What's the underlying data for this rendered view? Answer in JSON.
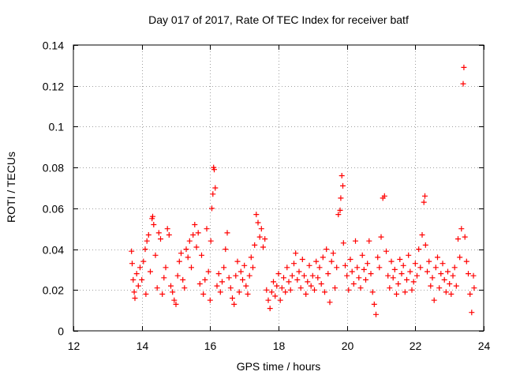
{
  "chart_data": {
    "type": "scatter",
    "title": "Day 017 of 2017, Rate Of TEC Index for receiver batf",
    "xlabel": "GPS time / hours",
    "ylabel": "ROTI / TECUs",
    "xlim": [
      12,
      24
    ],
    "ylim": [
      0,
      0.14
    ],
    "xticks": [
      12,
      14,
      16,
      18,
      20,
      22,
      24
    ],
    "xtick_labels": [
      "12",
      "14",
      "16",
      "18",
      "20",
      "22",
      "24"
    ],
    "yticks": [
      0,
      0.02,
      0.04,
      0.06,
      0.08,
      0.1,
      0.12,
      0.14
    ],
    "ytick_labels": [
      "0",
      "0.02",
      "0.04",
      "0.06",
      "0.08",
      "0.1",
      "0.12",
      "0.14"
    ],
    "grid": true,
    "marker": "+",
    "color": "#ff0000",
    "series": [
      {
        "name": "ROTI",
        "points": [
          [
            13.7,
            0.039
          ],
          [
            13.72,
            0.033
          ],
          [
            13.75,
            0.025
          ],
          [
            13.78,
            0.019
          ],
          [
            13.8,
            0.016
          ],
          [
            13.85,
            0.028
          ],
          [
            13.9,
            0.022
          ],
          [
            13.95,
            0.031
          ],
          [
            14.0,
            0.025
          ],
          [
            14.05,
            0.034
          ],
          [
            14.1,
            0.04
          ],
          [
            14.12,
            0.018
          ],
          [
            14.15,
            0.044
          ],
          [
            14.2,
            0.047
          ],
          [
            14.25,
            0.029
          ],
          [
            14.3,
            0.055
          ],
          [
            14.32,
            0.056
          ],
          [
            14.35,
            0.052
          ],
          [
            14.4,
            0.037
          ],
          [
            14.45,
            0.021
          ],
          [
            14.5,
            0.048
          ],
          [
            14.55,
            0.045
          ],
          [
            14.6,
            0.018
          ],
          [
            14.65,
            0.026
          ],
          [
            14.7,
            0.031
          ],
          [
            14.75,
            0.05
          ],
          [
            14.8,
            0.047
          ],
          [
            14.85,
            0.022
          ],
          [
            14.9,
            0.019
          ],
          [
            14.95,
            0.015
          ],
          [
            15.0,
            0.013
          ],
          [
            15.05,
            0.027
          ],
          [
            15.1,
            0.034
          ],
          [
            15.15,
            0.038
          ],
          [
            15.2,
            0.025
          ],
          [
            15.25,
            0.021
          ],
          [
            15.3,
            0.04
          ],
          [
            15.35,
            0.036
          ],
          [
            15.4,
            0.044
          ],
          [
            15.45,
            0.031
          ],
          [
            15.5,
            0.047
          ],
          [
            15.55,
            0.052
          ],
          [
            15.6,
            0.041
          ],
          [
            15.65,
            0.048
          ],
          [
            15.7,
            0.023
          ],
          [
            15.75,
            0.037
          ],
          [
            15.8,
            0.018
          ],
          [
            15.85,
            0.025
          ],
          [
            15.9,
            0.05
          ],
          [
            15.95,
            0.029
          ],
          [
            16.0,
            0.015
          ],
          [
            16.02,
            0.044
          ],
          [
            16.05,
            0.06
          ],
          [
            16.08,
            0.067
          ],
          [
            16.1,
            0.08
          ],
          [
            16.12,
            0.079
          ],
          [
            16.15,
            0.07
          ],
          [
            16.2,
            0.022
          ],
          [
            16.25,
            0.028
          ],
          [
            16.3,
            0.019
          ],
          [
            16.35,
            0.024
          ],
          [
            16.4,
            0.031
          ],
          [
            16.45,
            0.04
          ],
          [
            16.5,
            0.048
          ],
          [
            16.55,
            0.026
          ],
          [
            16.6,
            0.021
          ],
          [
            16.65,
            0.016
          ],
          [
            16.7,
            0.013
          ],
          [
            16.75,
            0.027
          ],
          [
            16.8,
            0.034
          ],
          [
            16.85,
            0.019
          ],
          [
            16.9,
            0.029
          ],
          [
            16.95,
            0.025
          ],
          [
            17.0,
            0.032
          ],
          [
            17.05,
            0.022
          ],
          [
            17.1,
            0.018
          ],
          [
            17.15,
            0.027
          ],
          [
            17.2,
            0.036
          ],
          [
            17.25,
            0.031
          ],
          [
            17.3,
            0.042
          ],
          [
            17.35,
            0.057
          ],
          [
            17.4,
            0.053
          ],
          [
            17.45,
            0.046
          ],
          [
            17.5,
            0.05
          ],
          [
            17.55,
            0.041
          ],
          [
            17.6,
            0.045
          ],
          [
            17.65,
            0.02
          ],
          [
            17.7,
            0.015
          ],
          [
            17.75,
            0.011
          ],
          [
            17.8,
            0.019
          ],
          [
            17.85,
            0.024
          ],
          [
            17.9,
            0.017
          ],
          [
            17.95,
            0.022
          ],
          [
            18.0,
            0.028
          ],
          [
            18.05,
            0.015
          ],
          [
            18.1,
            0.021
          ],
          [
            18.15,
            0.026
          ],
          [
            18.2,
            0.019
          ],
          [
            18.25,
            0.031
          ],
          [
            18.3,
            0.024
          ],
          [
            18.35,
            0.02
          ],
          [
            18.4,
            0.027
          ],
          [
            18.45,
            0.033
          ],
          [
            18.5,
            0.038
          ],
          [
            18.55,
            0.025
          ],
          [
            18.6,
            0.029
          ],
          [
            18.65,
            0.021
          ],
          [
            18.7,
            0.035
          ],
          [
            18.75,
            0.027
          ],
          [
            18.8,
            0.018
          ],
          [
            18.85,
            0.024
          ],
          [
            18.9,
            0.032
          ],
          [
            18.95,
            0.022
          ],
          [
            19.0,
            0.027
          ],
          [
            19.05,
            0.02
          ],
          [
            19.1,
            0.034
          ],
          [
            19.15,
            0.026
          ],
          [
            19.2,
            0.031
          ],
          [
            19.25,
            0.023
          ],
          [
            19.3,
            0.036
          ],
          [
            19.35,
            0.019
          ],
          [
            19.4,
            0.04
          ],
          [
            19.45,
            0.028
          ],
          [
            19.5,
            0.014
          ],
          [
            19.55,
            0.034
          ],
          [
            19.6,
            0.038
          ],
          [
            19.65,
            0.021
          ],
          [
            19.7,
            0.031
          ],
          [
            19.75,
            0.057
          ],
          [
            19.8,
            0.059
          ],
          [
            19.82,
            0.065
          ],
          [
            19.85,
            0.076
          ],
          [
            19.88,
            0.071
          ],
          [
            19.9,
            0.043
          ],
          [
            19.95,
            0.032
          ],
          [
            20.0,
            0.027
          ],
          [
            20.05,
            0.02
          ],
          [
            20.1,
            0.035
          ],
          [
            20.15,
            0.029
          ],
          [
            20.2,
            0.023
          ],
          [
            20.25,
            0.044
          ],
          [
            20.3,
            0.031
          ],
          [
            20.35,
            0.026
          ],
          [
            20.4,
            0.021
          ],
          [
            20.45,
            0.037
          ],
          [
            20.5,
            0.03
          ],
          [
            20.55,
            0.025
          ],
          [
            20.6,
            0.033
          ],
          [
            20.65,
            0.044
          ],
          [
            20.7,
            0.028
          ],
          [
            20.75,
            0.019
          ],
          [
            20.8,
            0.013
          ],
          [
            20.85,
            0.008
          ],
          [
            20.9,
            0.036
          ],
          [
            20.95,
            0.031
          ],
          [
            21.0,
            0.046
          ],
          [
            21.05,
            0.065
          ],
          [
            21.1,
            0.066
          ],
          [
            21.15,
            0.039
          ],
          [
            21.2,
            0.027
          ],
          [
            21.25,
            0.021
          ],
          [
            21.3,
            0.034
          ],
          [
            21.35,
            0.026
          ],
          [
            21.4,
            0.03
          ],
          [
            21.45,
            0.018
          ],
          [
            21.5,
            0.023
          ],
          [
            21.55,
            0.035
          ],
          [
            21.6,
            0.028
          ],
          [
            21.65,
            0.032
          ],
          [
            21.7,
            0.019
          ],
          [
            21.75,
            0.025
          ],
          [
            21.8,
            0.037
          ],
          [
            21.85,
            0.029
          ],
          [
            21.9,
            0.02
          ],
          [
            21.95,
            0.024
          ],
          [
            22.0,
            0.033
          ],
          [
            22.05,
            0.027
          ],
          [
            22.1,
            0.04
          ],
          [
            22.15,
            0.031
          ],
          [
            22.2,
            0.047
          ],
          [
            22.25,
            0.063
          ],
          [
            22.28,
            0.066
          ],
          [
            22.3,
            0.042
          ],
          [
            22.35,
            0.029
          ],
          [
            22.4,
            0.034
          ],
          [
            22.45,
            0.022
          ],
          [
            22.5,
            0.026
          ],
          [
            22.55,
            0.015
          ],
          [
            22.6,
            0.031
          ],
          [
            22.65,
            0.036
          ],
          [
            22.7,
            0.021
          ],
          [
            22.75,
            0.028
          ],
          [
            22.8,
            0.033
          ],
          [
            22.85,
            0.025
          ],
          [
            22.9,
            0.019
          ],
          [
            22.95,
            0.029
          ],
          [
            23.0,
            0.023
          ],
          [
            23.05,
            0.018
          ],
          [
            23.1,
            0.027
          ],
          [
            23.15,
            0.031
          ],
          [
            23.2,
            0.022
          ],
          [
            23.25,
            0.045
          ],
          [
            23.3,
            0.036
          ],
          [
            23.35,
            0.05
          ],
          [
            23.4,
            0.121
          ],
          [
            23.42,
            0.129
          ],
          [
            23.45,
            0.046
          ],
          [
            23.5,
            0.034
          ],
          [
            23.55,
            0.028
          ],
          [
            23.6,
            0.018
          ],
          [
            23.65,
            0.009
          ],
          [
            23.7,
            0.027
          ],
          [
            23.72,
            0.021
          ]
        ]
      }
    ]
  }
}
